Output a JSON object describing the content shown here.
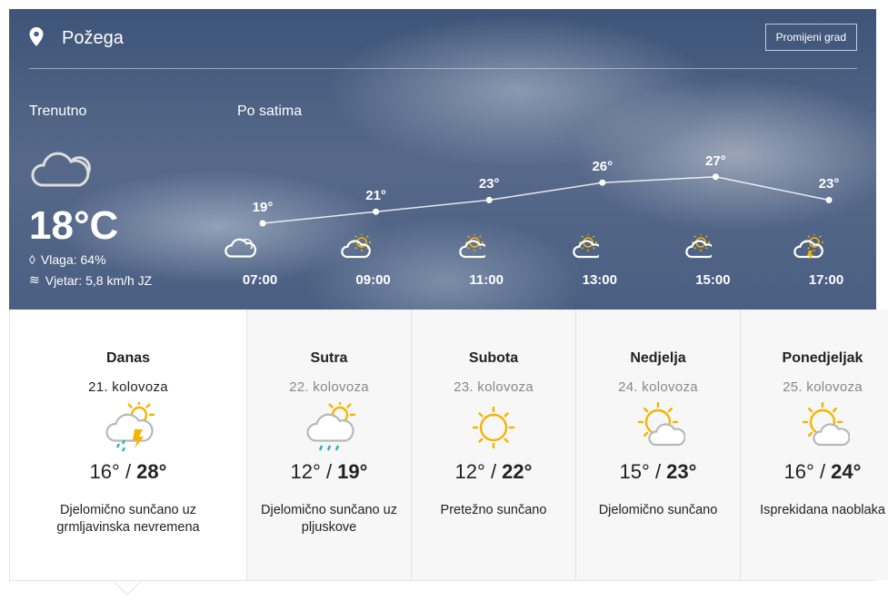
{
  "header": {
    "city": "Požega",
    "change_city_label": "Promijeni grad"
  },
  "current": {
    "label": "Trenutno",
    "icon": "cloudy-icon",
    "temperature": "18°C",
    "humidity": "Vlaga: 64%",
    "wind": "Vjetar: 5,8 km/h JZ"
  },
  "hourly": {
    "label": "Po satima",
    "items": [
      {
        "time": "07:00",
        "temp": "19°",
        "value": 19,
        "icon": "cloudy"
      },
      {
        "time": "09:00",
        "temp": "21°",
        "value": 21,
        "icon": "partly-sunny"
      },
      {
        "time": "11:00",
        "temp": "23°",
        "value": 23,
        "icon": "mostly-sunny"
      },
      {
        "time": "13:00",
        "temp": "26°",
        "value": 26,
        "icon": "mostly-sunny"
      },
      {
        "time": "15:00",
        "temp": "27°",
        "value": 27,
        "icon": "mostly-sunny"
      },
      {
        "time": "17:00",
        "temp": "23°",
        "value": 23,
        "icon": "thunderstorm"
      }
    ]
  },
  "days": [
    {
      "name": "Danas",
      "date": "21. kolovoza",
      "min": "16°",
      "max": "28°",
      "desc": "Djelomično sunčano uz grmljavinska nevremena",
      "icon": "storm"
    },
    {
      "name": "Sutra",
      "date": "22. kolovoza",
      "min": "12°",
      "max": "19°",
      "desc": "Djelomično sunčano uz pljuskove",
      "icon": "rain"
    },
    {
      "name": "Subota",
      "date": "23. kolovoza",
      "min": "12°",
      "max": "22°",
      "desc": "Pretežno sunčano",
      "icon": "sun"
    },
    {
      "name": "Nedjelja",
      "date": "24. kolovoza",
      "min": "15°",
      "max": "23°",
      "desc": "Djelomično sunčano",
      "icon": "suncloud"
    },
    {
      "name": "Ponedjeljak",
      "date": "25. kolovoza",
      "min": "16°",
      "max": "24°",
      "desc": "Isprekidana naoblaka",
      "icon": "suncloud"
    }
  ],
  "colors": {
    "sun": "#f5b400",
    "cloud": "#b8b8b8",
    "rain": "#2bb3c0"
  }
}
